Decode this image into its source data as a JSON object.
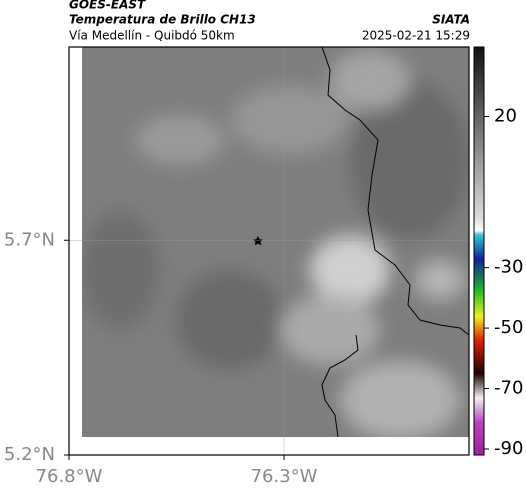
{
  "header": {
    "source": "GOES-EAST",
    "title": "Temperatura de Brillo CH13",
    "subtitle": "Vía Medellín - Quibdó 50km",
    "org": "SIATA",
    "timestamp": "2025-02-21 15:29"
  },
  "map": {
    "xlim": [
      -76.8,
      -75.87
    ],
    "ylim": [
      5.2,
      6.15
    ],
    "xticks": [
      {
        "value": -76.8,
        "label": "76.8°W"
      },
      {
        "value": -76.3,
        "label": "76.3°W"
      }
    ],
    "yticks": [
      {
        "value": 5.7,
        "label": "5.7°N"
      },
      {
        "value": 5.2,
        "label": "5.2°N"
      }
    ]
  },
  "colorbar": {
    "lim": [
      43,
      -92
    ],
    "ticks": [
      20,
      -30,
      -50,
      -70,
      -90
    ]
  }
}
